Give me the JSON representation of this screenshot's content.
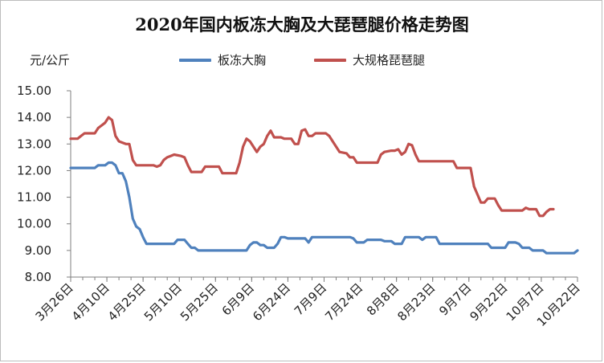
{
  "chart_data": {
    "type": "line",
    "title": "2020年国内板冻大胸及大琵琶腿价格走势图",
    "y_unit": "元/公斤",
    "ylim": [
      8.0,
      15.0
    ],
    "y_ticks": [
      "8.00",
      "9.00",
      "10.00",
      "11.00",
      "12.00",
      "13.00",
      "14.00",
      "15.00"
    ],
    "x_ticks": [
      "3月26日",
      "4月10日",
      "4月25日",
      "5月10日",
      "5月25日",
      "6月9日",
      "6月24日",
      "7月9日",
      "7月24日",
      "8月8日",
      "8月23日",
      "9月7日",
      "9月22日",
      "10月7日",
      "10月22日"
    ],
    "grid": false,
    "legend": "top",
    "series": [
      {
        "name": "板冻大胸",
        "color": "#4f81bd",
        "points": [
          [
            0,
            12.1
          ],
          [
            7,
            12.1
          ],
          [
            8,
            12.2
          ],
          [
            10,
            12.2
          ],
          [
            11,
            12.3
          ],
          [
            12,
            12.3
          ],
          [
            13,
            12.2
          ],
          [
            14,
            11.9
          ],
          [
            15,
            11.9
          ],
          [
            16,
            11.6
          ],
          [
            17,
            11.0
          ],
          [
            18,
            10.2
          ],
          [
            19,
            9.9
          ],
          [
            20,
            9.8
          ],
          [
            21,
            9.5
          ],
          [
            22,
            9.25
          ],
          [
            30,
            9.25
          ],
          [
            31,
            9.4
          ],
          [
            33,
            9.4
          ],
          [
            34,
            9.25
          ],
          [
            35,
            9.1
          ],
          [
            36,
            9.1
          ],
          [
            37,
            9.0
          ],
          [
            51,
            9.0
          ],
          [
            52,
            9.2
          ],
          [
            53,
            9.3
          ],
          [
            54,
            9.3
          ],
          [
            55,
            9.2
          ],
          [
            56,
            9.2
          ],
          [
            57,
            9.1
          ],
          [
            59,
            9.1
          ],
          [
            60,
            9.25
          ],
          [
            61,
            9.5
          ],
          [
            62,
            9.5
          ],
          [
            63,
            9.45
          ],
          [
            68,
            9.45
          ],
          [
            69,
            9.3
          ],
          [
            70,
            9.5
          ],
          [
            81,
            9.5
          ],
          [
            82,
            9.45
          ],
          [
            83,
            9.3
          ],
          [
            85,
            9.3
          ],
          [
            86,
            9.4
          ],
          [
            90,
            9.4
          ],
          [
            91,
            9.35
          ],
          [
            93,
            9.35
          ],
          [
            94,
            9.25
          ],
          [
            96,
            9.25
          ],
          [
            97,
            9.5
          ],
          [
            101,
            9.5
          ],
          [
            102,
            9.4
          ],
          [
            103,
            9.5
          ],
          [
            106,
            9.5
          ],
          [
            107,
            9.25
          ],
          [
            121,
            9.25
          ],
          [
            122,
            9.1
          ],
          [
            126,
            9.1
          ],
          [
            127,
            9.3
          ],
          [
            129,
            9.3
          ],
          [
            130,
            9.25
          ],
          [
            131,
            9.1
          ],
          [
            133,
            9.1
          ],
          [
            134,
            9.0
          ],
          [
            137,
            9.0
          ],
          [
            138,
            8.9
          ],
          [
            146,
            8.9
          ],
          [
            147,
            9.0
          ]
        ]
      },
      {
        "name": "大规格琵琶腿",
        "color": "#c0504d",
        "points": [
          [
            0,
            13.2
          ],
          [
            2,
            13.2
          ],
          [
            3,
            13.3
          ],
          [
            4,
            13.4
          ],
          [
            7,
            13.4
          ],
          [
            8,
            13.6
          ],
          [
            9,
            13.7
          ],
          [
            10,
            13.8
          ],
          [
            11,
            14.0
          ],
          [
            12,
            13.9
          ],
          [
            13,
            13.3
          ],
          [
            14,
            13.1
          ],
          [
            16,
            13.0
          ],
          [
            17,
            13.0
          ],
          [
            18,
            12.4
          ],
          [
            19,
            12.2
          ],
          [
            24,
            12.2
          ],
          [
            25,
            12.15
          ],
          [
            26,
            12.2
          ],
          [
            27,
            12.4
          ],
          [
            28,
            12.5
          ],
          [
            29,
            12.55
          ],
          [
            30,
            12.6
          ],
          [
            32,
            12.55
          ],
          [
            33,
            12.5
          ],
          [
            34,
            12.2
          ],
          [
            35,
            11.95
          ],
          [
            38,
            11.95
          ],
          [
            39,
            12.15
          ],
          [
            43,
            12.15
          ],
          [
            44,
            11.9
          ],
          [
            48,
            11.9
          ],
          [
            49,
            12.3
          ],
          [
            50,
            12.9
          ],
          [
            51,
            13.2
          ],
          [
            52,
            13.1
          ],
          [
            53,
            12.9
          ],
          [
            54,
            12.7
          ],
          [
            55,
            12.9
          ],
          [
            56,
            13.0
          ],
          [
            57,
            13.3
          ],
          [
            58,
            13.5
          ],
          [
            59,
            13.25
          ],
          [
            61,
            13.25
          ],
          [
            62,
            13.2
          ],
          [
            64,
            13.2
          ],
          [
            65,
            13.0
          ],
          [
            66,
            13.0
          ],
          [
            67,
            13.5
          ],
          [
            68,
            13.55
          ],
          [
            69,
            13.3
          ],
          [
            70,
            13.3
          ],
          [
            71,
            13.4
          ],
          [
            74,
            13.4
          ],
          [
            75,
            13.3
          ],
          [
            76,
            13.1
          ],
          [
            77,
            12.9
          ],
          [
            78,
            12.7
          ],
          [
            80,
            12.65
          ],
          [
            81,
            12.5
          ],
          [
            82,
            12.5
          ],
          [
            83,
            12.3
          ],
          [
            89,
            12.3
          ],
          [
            90,
            12.6
          ],
          [
            91,
            12.7
          ],
          [
            93,
            12.75
          ],
          [
            94,
            12.75
          ],
          [
            95,
            12.8
          ],
          [
            96,
            12.6
          ],
          [
            97,
            12.7
          ],
          [
            98,
            13.0
          ],
          [
            99,
            12.95
          ],
          [
            100,
            12.6
          ],
          [
            101,
            12.35
          ],
          [
            111,
            12.35
          ],
          [
            112,
            12.1
          ],
          [
            116,
            12.1
          ],
          [
            117,
            11.4
          ],
          [
            118,
            11.1
          ],
          [
            119,
            10.8
          ],
          [
            120,
            10.8
          ],
          [
            121,
            10.95
          ],
          [
            123,
            10.95
          ],
          [
            124,
            10.7
          ],
          [
            125,
            10.5
          ],
          [
            131,
            10.5
          ],
          [
            132,
            10.6
          ],
          [
            133,
            10.55
          ],
          [
            135,
            10.55
          ],
          [
            136,
            10.3
          ],
          [
            137,
            10.3
          ],
          [
            138,
            10.45
          ],
          [
            139,
            10.55
          ],
          [
            140,
            10.55
          ]
        ]
      }
    ]
  }
}
